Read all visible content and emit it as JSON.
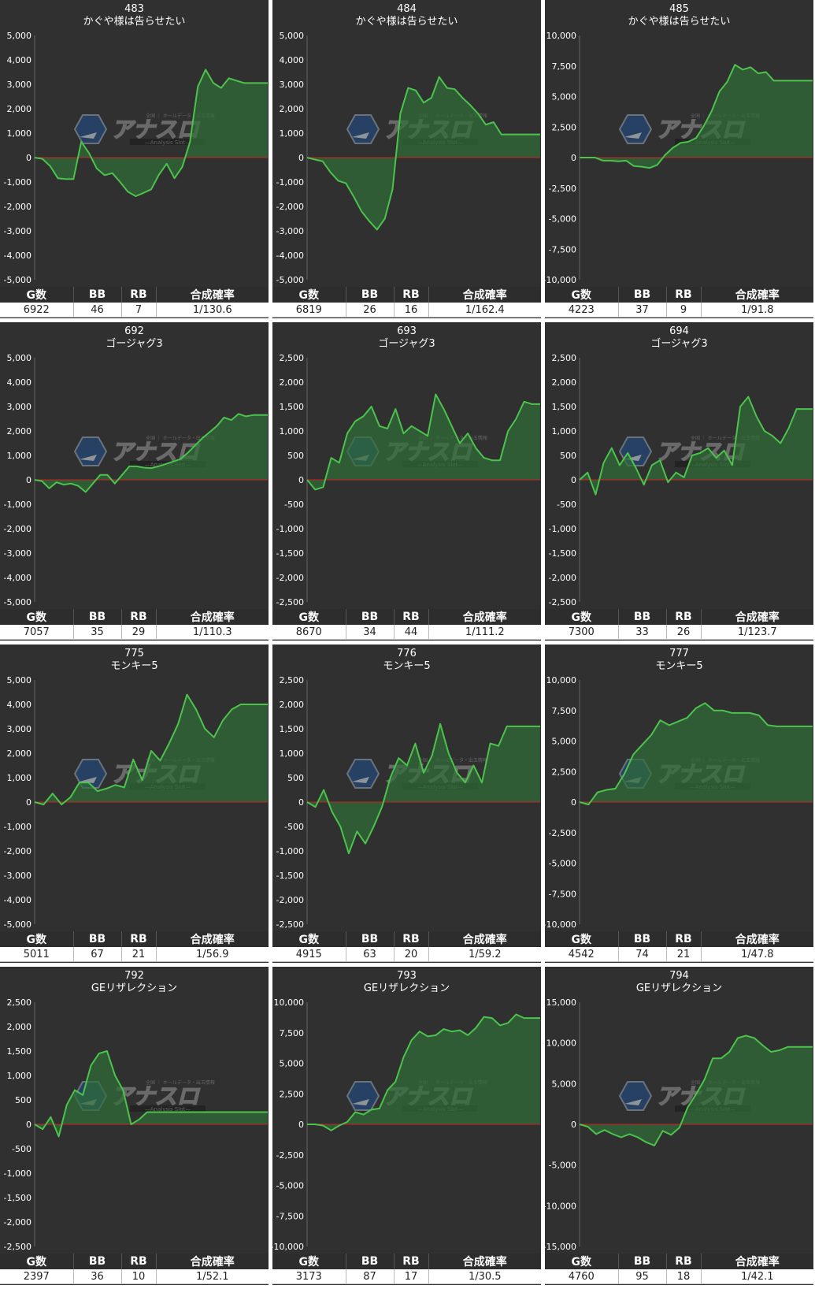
{
  "stat_headers": [
    "G数",
    "BB",
    "RB",
    "合成確率"
  ],
  "watermark": {
    "logo_text": "アナスロ",
    "sub_text": "—Analysis Slot—",
    "top_text": "全国 ｜ ホールデータ・出玉情報"
  },
  "colors": {
    "panel_bg": "#303030",
    "line": "#4cc34c",
    "area": "#2f6e37",
    "zero_line": "#cc2222",
    "grid": "#555555"
  },
  "chart_data": [
    {
      "type": "area",
      "title": "483",
      "subtitle": "かぐや様は告らせたい",
      "ylim": [
        -5000,
        5000
      ],
      "ticks": [
        5000,
        4000,
        3000,
        2000,
        1000,
        0,
        -1000,
        -2000,
        -3000,
        -4000,
        -5000
      ],
      "values": [
        0,
        -50,
        -350,
        -850,
        -880,
        -880,
        650,
        180,
        -450,
        -720,
        -640,
        -1000,
        -1400,
        -1580,
        -1450,
        -1300,
        -700,
        -250,
        -850,
        -380,
        650,
        2900,
        3600,
        3050,
        2850,
        3250,
        3150,
        3050,
        3050,
        3050,
        3050
      ],
      "stats": {
        "g": "6922",
        "bb": "46",
        "rb": "7",
        "rate": "1/130.6"
      }
    },
    {
      "type": "area",
      "title": "484",
      "subtitle": "かぐや様は告らせたい",
      "ylim": [
        -5000,
        5000
      ],
      "ticks": [
        5000,
        4000,
        3000,
        2000,
        1000,
        0,
        -1000,
        -2000,
        -3000,
        -4000,
        -5000
      ],
      "values": [
        0,
        -80,
        -150,
        -600,
        -950,
        -1050,
        -1600,
        -2200,
        -2600,
        -2950,
        -2500,
        -1300,
        1800,
        2850,
        2750,
        2250,
        2450,
        3300,
        2850,
        2800,
        2450,
        2150,
        1800,
        1350,
        1450,
        950,
        950,
        950,
        950,
        950,
        950
      ],
      "stats": {
        "g": "6819",
        "bb": "26",
        "rb": "16",
        "rate": "1/162.4"
      }
    },
    {
      "type": "area",
      "title": "485",
      "subtitle": "かぐや様は告らせたい",
      "ylim": [
        -10000,
        10000
      ],
      "ticks": [
        10000,
        7500,
        5000,
        2500,
        0,
        -2500,
        -5000,
        -7500,
        -10000
      ],
      "values": [
        0,
        0,
        0,
        -250,
        -250,
        -300,
        -250,
        -700,
        -750,
        -850,
        -600,
        200,
        800,
        1200,
        1300,
        1600,
        2600,
        3800,
        5400,
        6200,
        7600,
        7200,
        7400,
        6900,
        7000,
        6300,
        6300,
        6300,
        6300,
        6300,
        6300
      ],
      "stats": {
        "g": "4223",
        "bb": "37",
        "rb": "9",
        "rate": "1/91.8"
      }
    },
    {
      "type": "area",
      "title": "692",
      "subtitle": "ゴージャグ3",
      "ylim": [
        -5000,
        5000
      ],
      "ticks": [
        5000,
        4000,
        3000,
        2000,
        1000,
        0,
        -1000,
        -2000,
        -3000,
        -4000,
        -5000
      ],
      "values": [
        0,
        -50,
        -350,
        -100,
        -200,
        -150,
        -250,
        -500,
        -150,
        200,
        200,
        -150,
        200,
        550,
        550,
        500,
        480,
        550,
        650,
        750,
        850,
        1100,
        1400,
        1700,
        1950,
        2200,
        2550,
        2450,
        2700,
        2600,
        2650,
        2650,
        2650
      ],
      "stats": {
        "g": "7057",
        "bb": "35",
        "rb": "29",
        "rate": "1/110.3"
      }
    },
    {
      "type": "area",
      "title": "693",
      "subtitle": "ゴージャグ3",
      "ylim": [
        -2500,
        2500
      ],
      "ticks": [
        2500,
        2000,
        1500,
        1000,
        500,
        0,
        -500,
        -1000,
        -1500,
        -2000,
        -2500
      ],
      "values": [
        0,
        -200,
        -150,
        450,
        350,
        950,
        1200,
        1300,
        1500,
        1100,
        1050,
        1450,
        950,
        1100,
        1000,
        900,
        1750,
        1450,
        1100,
        750,
        950,
        650,
        450,
        400,
        400,
        1000,
        1250,
        1600,
        1550,
        1550
      ],
      "stats": {
        "g": "8670",
        "bb": "34",
        "rb": "44",
        "rate": "1/111.2"
      }
    },
    {
      "type": "area",
      "title": "694",
      "subtitle": "ゴージャグ3",
      "ylim": [
        -2500,
        2500
      ],
      "ticks": [
        2500,
        2000,
        1500,
        1000,
        500,
        0,
        -500,
        -1000,
        -1500,
        -2000,
        -2500
      ],
      "values": [
        0,
        150,
        -300,
        350,
        650,
        300,
        550,
        250,
        -100,
        300,
        400,
        -50,
        150,
        50,
        500,
        550,
        650,
        450,
        600,
        300,
        1500,
        1700,
        1300,
        1000,
        900,
        750,
        1050,
        1450,
        1450,
        1450
      ],
      "stats": {
        "g": "7300",
        "bb": "33",
        "rb": "26",
        "rate": "1/123.7"
      }
    },
    {
      "type": "area",
      "title": "775",
      "subtitle": "モンキー5",
      "ylim": [
        -5000,
        5000
      ],
      "ticks": [
        5000,
        4000,
        3000,
        2000,
        1000,
        0,
        -1000,
        -2000,
        -3000,
        -4000,
        -5000
      ],
      "values": [
        0,
        -100,
        350,
        -100,
        200,
        800,
        800,
        450,
        550,
        700,
        600,
        1750,
        900,
        2100,
        1700,
        2400,
        3200,
        4400,
        3800,
        3000,
        2650,
        3350,
        3800,
        4000,
        4000,
        4000,
        4000
      ],
      "stats": {
        "g": "5011",
        "bb": "67",
        "rb": "21",
        "rate": "1/56.9"
      }
    },
    {
      "type": "area",
      "title": "776",
      "subtitle": "モンキー5",
      "ylim": [
        -2500,
        2500
      ],
      "ticks": [
        2500,
        2000,
        1500,
        1000,
        500,
        0,
        -500,
        -1000,
        -1500,
        -2000,
        -2500
      ],
      "values": [
        0,
        -100,
        250,
        -200,
        -500,
        -1050,
        -600,
        -850,
        -500,
        -100,
        500,
        900,
        750,
        1200,
        600,
        950,
        1600,
        1000,
        600,
        400,
        750,
        400,
        1200,
        1150,
        1550,
        1550,
        1550,
        1550,
        1550
      ],
      "stats": {
        "g": "4915",
        "bb": "63",
        "rb": "20",
        "rate": "1/59.2"
      }
    },
    {
      "type": "area",
      "title": "777",
      "subtitle": "モンキー5",
      "ylim": [
        -10000,
        10000
      ],
      "ticks": [
        10000,
        7500,
        5000,
        2500,
        0,
        -2500,
        -5000,
        -7500,
        -10000
      ],
      "values": [
        0,
        -200,
        800,
        1000,
        1100,
        2300,
        3900,
        4700,
        5500,
        6700,
        6300,
        6600,
        6900,
        7700,
        8100,
        7500,
        7500,
        7300,
        7300,
        7300,
        7100,
        6300,
        6200,
        6200,
        6200,
        6200,
        6200
      ],
      "stats": {
        "g": "4542",
        "bb": "74",
        "rb": "21",
        "rate": "1/47.8"
      }
    },
    {
      "type": "area",
      "title": "792",
      "subtitle": "GEリザレクション",
      "ylim": [
        -2500,
        2500
      ],
      "ticks": [
        2500,
        2000,
        1500,
        1000,
        500,
        0,
        -500,
        -1000,
        -1500,
        -2000,
        -2500
      ],
      "values": [
        0,
        -100,
        150,
        -250,
        400,
        700,
        600,
        1200,
        1450,
        1500,
        1000,
        700,
        0,
        100,
        250,
        250,
        250,
        250,
        250,
        250,
        250,
        250,
        250,
        250,
        250,
        250,
        250,
        250,
        250,
        250
      ],
      "stats": {
        "g": "2397",
        "bb": "36",
        "rb": "10",
        "rate": "1/52.1"
      }
    },
    {
      "type": "area",
      "title": "793",
      "subtitle": "GEリザレクション",
      "ylim": [
        -10000,
        10000
      ],
      "ticks": [
        10000,
        7500,
        5000,
        2500,
        0,
        -2500,
        -5000,
        -7500,
        -10000
      ],
      "values": [
        0,
        0,
        -100,
        -500,
        -100,
        200,
        1000,
        800,
        1200,
        1300,
        2800,
        3500,
        5500,
        6900,
        7600,
        7200,
        7300,
        7800,
        7600,
        7700,
        7300,
        7900,
        8800,
        8700,
        8100,
        8300,
        9000,
        8700,
        8700,
        8700
      ],
      "stats": {
        "g": "3173",
        "bb": "87",
        "rb": "17",
        "rate": "1/30.5"
      }
    },
    {
      "type": "area",
      "title": "794",
      "subtitle": "GEリザレクション",
      "ylim": [
        -15000,
        15000
      ],
      "ticks": [
        15000,
        10000,
        5000,
        0,
        -5000,
        -10000,
        -15000
      ],
      "values": [
        0,
        -300,
        -1200,
        -700,
        -1200,
        -1600,
        -1200,
        -1600,
        -2200,
        -2600,
        -800,
        -1300,
        -400,
        2100,
        3700,
        5500,
        8100,
        8100,
        8900,
        10600,
        10900,
        10600,
        9700,
        8900,
        9100,
        9500,
        9500,
        9500,
        9500
      ],
      "stats": {
        "g": "4760",
        "bb": "95",
        "rb": "18",
        "rate": "1/42.1"
      }
    }
  ]
}
